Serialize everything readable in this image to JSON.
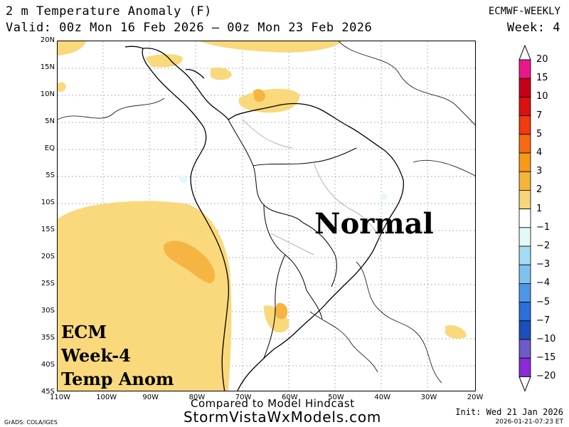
{
  "header": {
    "title": "2 m Temperature Anomaly (F)",
    "model": "ECMWF-WEEKLY",
    "valid": "Valid: 00z Mon 16 Feb 2026 — 00z Mon 23 Feb 2026",
    "week": "Week: 4"
  },
  "map": {
    "lat_labels": [
      "20N",
      "15N",
      "10N",
      "5N",
      "EQ",
      "5S",
      "10S",
      "15S",
      "20S",
      "25S",
      "30S",
      "35S",
      "40S",
      "45S"
    ],
    "lon_labels": [
      "110W",
      "100W",
      "90W",
      "80W",
      "70W",
      "60W",
      "50W",
      "40W",
      "30W",
      "20W"
    ],
    "overlay_text": "Normal",
    "panel_text": [
      "ECM",
      "Week-4",
      "Temp Anom"
    ]
  },
  "colorbar": {
    "labels": [
      "20",
      "15",
      "10",
      "7",
      "5",
      "4",
      "3",
      "2",
      "1",
      "−1",
      "−2",
      "−3",
      "−4",
      "−5",
      "−7",
      "−10",
      "−15",
      "−20"
    ],
    "colors": [
      "#e8188c",
      "#c4001a",
      "#dd1010",
      "#f03a10",
      "#f66a12",
      "#f79a18",
      "#f5b43a",
      "#f7d57a",
      "#ffffff",
      "#e2f9fa",
      "#a6dcf3",
      "#80c2ee",
      "#4c98e6",
      "#2b6fd9",
      "#1c4fbc",
      "#6e5ac4",
      "#8a2bd8"
    ],
    "top_arrow_color": "#ffffff",
    "bottom_arrow_color": "#ffffff"
  },
  "anomaly_colors": {
    "weak_warm": "#f9d97c",
    "warm": "#f6b442",
    "weak_cool": "#e2f9fa"
  },
  "footer": {
    "compared": "Compared to Model Hindcast",
    "site": "StormVistaWxModels.com",
    "grads": "GrADS: COLA/IGES",
    "init": "Init: Wed 21 Jan 2026",
    "timestamp": "2026-01-21-07:23 ET"
  }
}
